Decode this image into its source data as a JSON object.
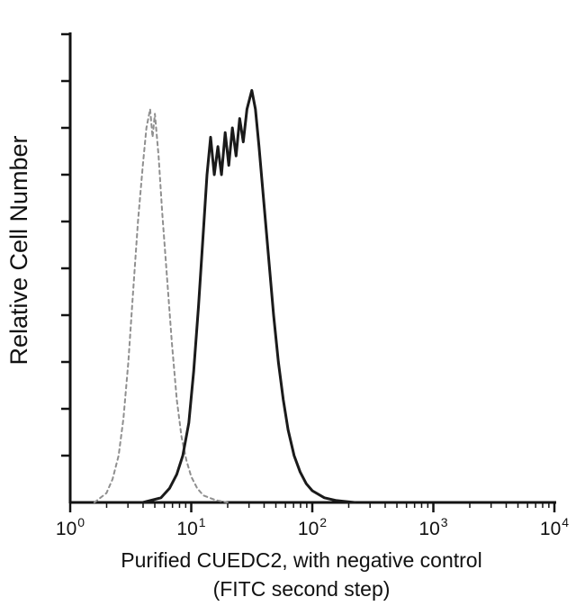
{
  "figure": {
    "background": "#ffffff",
    "axis_color": "#131313",
    "tick_label_color": "#111111"
  },
  "chart_data": {
    "type": "line",
    "chart_kind": "flow-cytometry-histogram",
    "title": "",
    "xlabel_line1": "Purified CUEDC2, with negative control",
    "xlabel_line2": "(FITC second step)",
    "ylabel": "Relative Cell Number",
    "x_scale": "log10",
    "x_range_log": [
      0,
      4
    ],
    "x_tick_exponents": [
      0,
      1,
      2,
      3,
      4
    ],
    "x_minor_log_ticks": true,
    "y_axis_labeled": false,
    "y_tick_count": 10,
    "ylim": [
      0,
      1
    ],
    "legend": "none",
    "series": [
      {
        "name": "negative control (FITC second step)",
        "style": "dashed",
        "color": "#8f8f8f",
        "stroke_width": 2,
        "points": [
          [
            0.2,
            0
          ],
          [
            0.3,
            0.02
          ],
          [
            0.35,
            0.05
          ],
          [
            0.4,
            0.1
          ],
          [
            0.44,
            0.18
          ],
          [
            0.48,
            0.3
          ],
          [
            0.52,
            0.45
          ],
          [
            0.56,
            0.6
          ],
          [
            0.6,
            0.72
          ],
          [
            0.63,
            0.8
          ],
          [
            0.66,
            0.84
          ],
          [
            0.68,
            0.78
          ],
          [
            0.7,
            0.83
          ],
          [
            0.73,
            0.74
          ],
          [
            0.76,
            0.62
          ],
          [
            0.8,
            0.48
          ],
          [
            0.84,
            0.34
          ],
          [
            0.88,
            0.22
          ],
          [
            0.92,
            0.14
          ],
          [
            0.96,
            0.09
          ],
          [
            1.0,
            0.055
          ],
          [
            1.05,
            0.03
          ],
          [
            1.1,
            0.015
          ],
          [
            1.2,
            0.005
          ],
          [
            1.3,
            0
          ]
        ]
      },
      {
        "name": "Purified CUEDC2",
        "style": "solid",
        "color": "#1a1a1a",
        "stroke_width": 3,
        "points": [
          [
            0.6,
            0
          ],
          [
            0.75,
            0.01
          ],
          [
            0.82,
            0.03
          ],
          [
            0.88,
            0.06
          ],
          [
            0.93,
            0.1
          ],
          [
            0.98,
            0.17
          ],
          [
            1.02,
            0.28
          ],
          [
            1.06,
            0.42
          ],
          [
            1.1,
            0.58
          ],
          [
            1.13,
            0.7
          ],
          [
            1.16,
            0.78
          ],
          [
            1.19,
            0.7
          ],
          [
            1.22,
            0.76
          ],
          [
            1.25,
            0.7
          ],
          [
            1.28,
            0.79
          ],
          [
            1.31,
            0.72
          ],
          [
            1.34,
            0.8
          ],
          [
            1.37,
            0.74
          ],
          [
            1.4,
            0.82
          ],
          [
            1.43,
            0.77
          ],
          [
            1.46,
            0.84
          ],
          [
            1.5,
            0.88
          ],
          [
            1.53,
            0.84
          ],
          [
            1.56,
            0.76
          ],
          [
            1.6,
            0.64
          ],
          [
            1.64,
            0.52
          ],
          [
            1.68,
            0.4
          ],
          [
            1.72,
            0.3
          ],
          [
            1.76,
            0.22
          ],
          [
            1.8,
            0.155
          ],
          [
            1.85,
            0.1
          ],
          [
            1.9,
            0.065
          ],
          [
            1.95,
            0.04
          ],
          [
            2.0,
            0.025
          ],
          [
            2.1,
            0.01
          ],
          [
            2.2,
            0.004
          ],
          [
            2.35,
            0
          ]
        ]
      }
    ]
  }
}
